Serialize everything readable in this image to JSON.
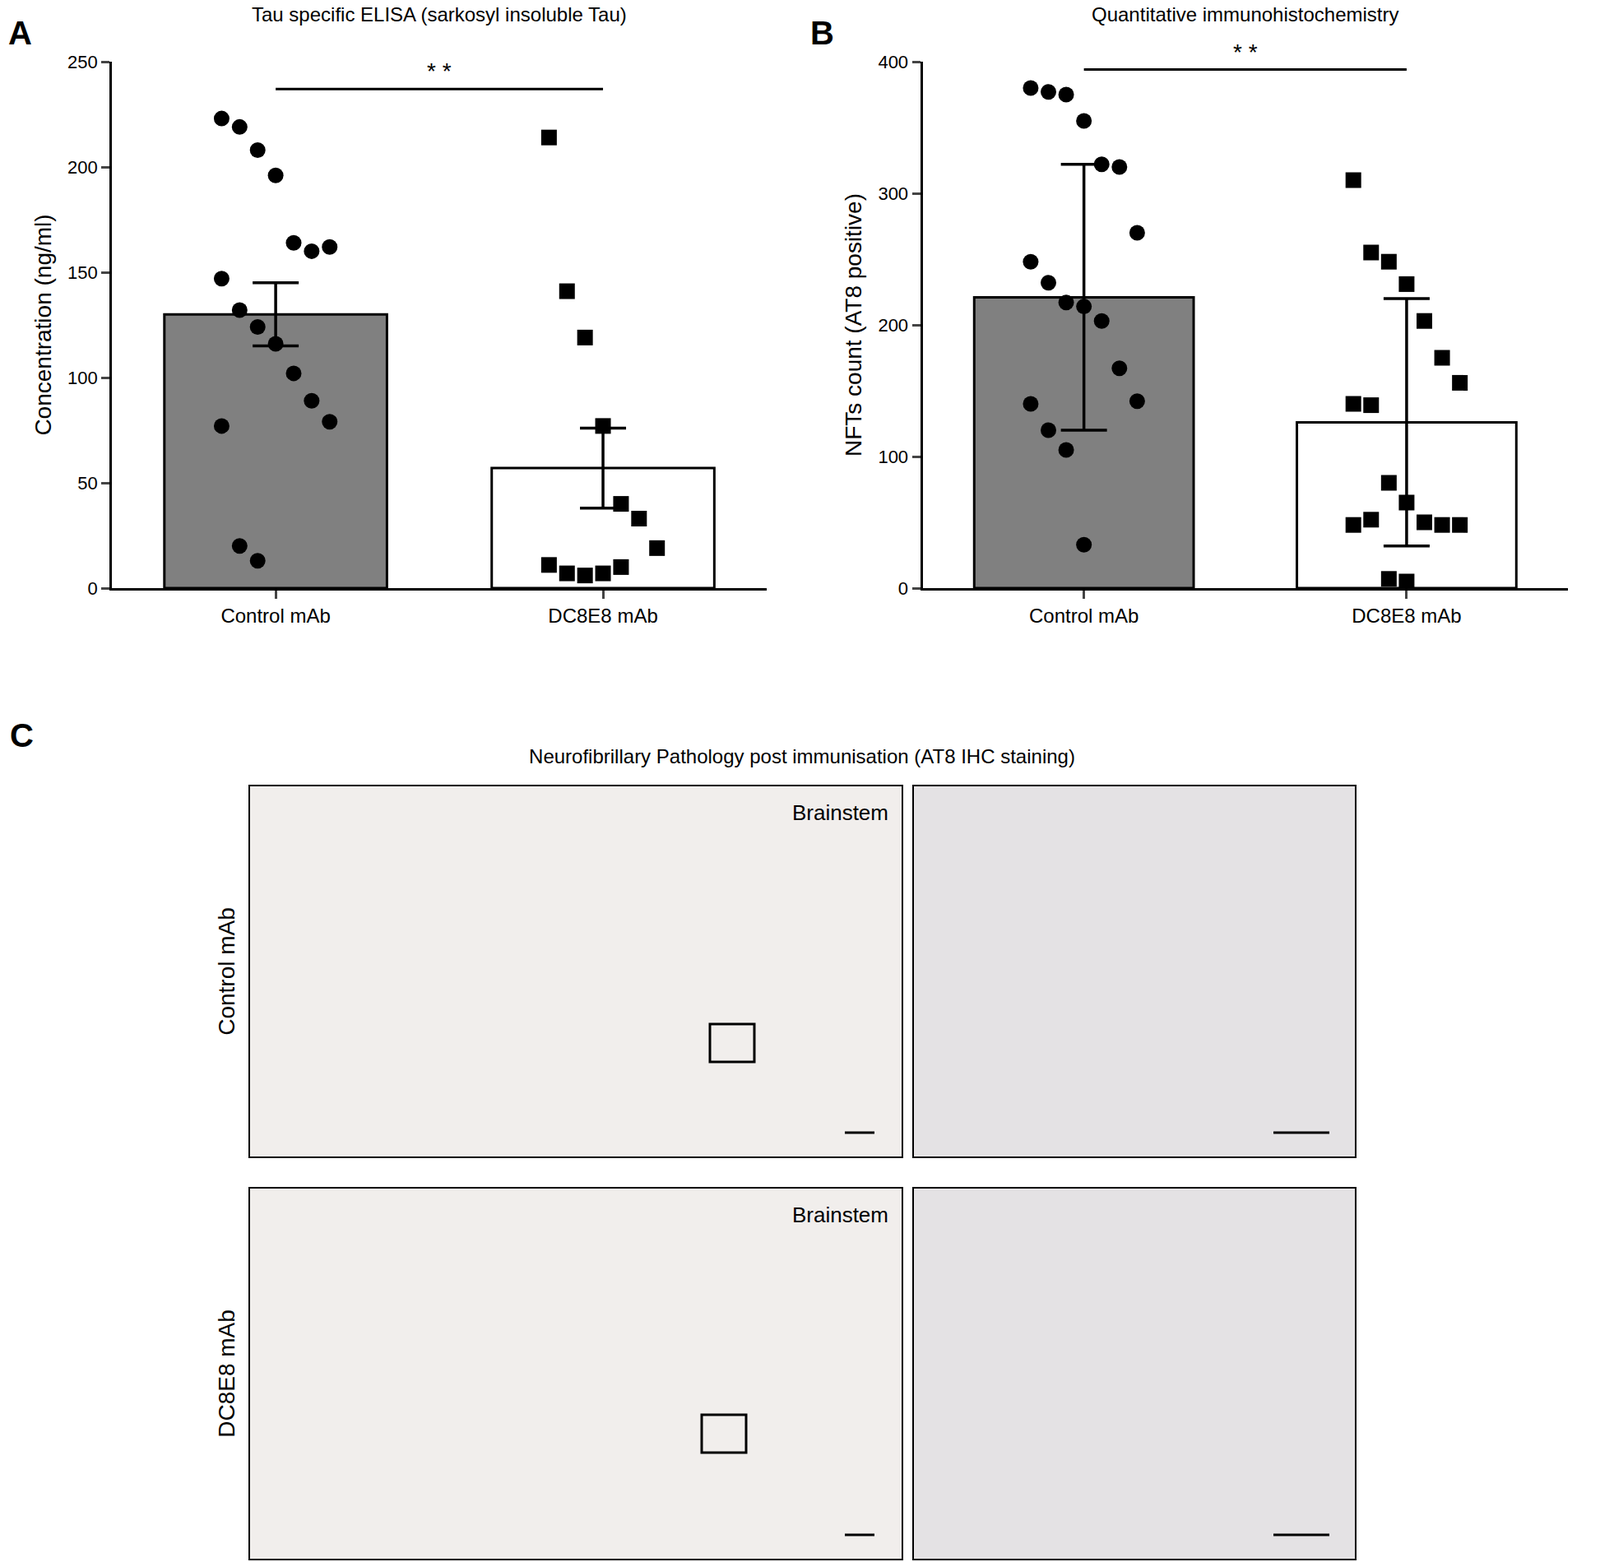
{
  "chart_data": [
    {
      "panel": "A",
      "type": "bar",
      "title": "Tau specific ELISA (sarkosyl insoluble Tau)",
      "y_label": "Concentration (ng/ml)",
      "categories": [
        "Control mAb",
        "DC8E8 mAb"
      ],
      "values": [
        130,
        57
      ],
      "error": [
        15,
        19
      ],
      "colors": [
        "#808080",
        "#ffffff"
      ],
      "points": [
        [
          223,
          219,
          208,
          196,
          164,
          160,
          162,
          147,
          132,
          124,
          116,
          102,
          89,
          79,
          77,
          20,
          13
        ],
        [
          214,
          141,
          119,
          77,
          40,
          33,
          19,
          11,
          7,
          6,
          7,
          10
        ]
      ],
      "point_markers": [
        "circle",
        "square"
      ],
      "ylim": [
        0,
        250
      ],
      "yticks": [
        0,
        50,
        100,
        150,
        200,
        250
      ],
      "grid": false,
      "annotations": [
        {
          "text": "* *",
          "y": 237
        }
      ]
    },
    {
      "panel": "B",
      "type": "bar",
      "title": "Quantitative immunohistochemistry",
      "y_label": "NFTs count (AT8 positive)",
      "categories": [
        "Control mAb",
        "DC8E8 mAb"
      ],
      "values": [
        221,
        126
      ],
      "error": [
        101,
        94
      ],
      "colors": [
        "#808080",
        "#ffffff"
      ],
      "points": [
        [
          380,
          377,
          375,
          355,
          322,
          320,
          270,
          248,
          232,
          217,
          214,
          203,
          167,
          142,
          140,
          120,
          105,
          33
        ],
        [
          310,
          255,
          248,
          231,
          203,
          175,
          156,
          140,
          139,
          80,
          65,
          50,
          48,
          48,
          48,
          52,
          7,
          5
        ]
      ],
      "point_markers": [
        "circle",
        "square"
      ],
      "ylim": [
        0,
        400
      ],
      "yticks": [
        0,
        100,
        200,
        300,
        400
      ],
      "grid": false,
      "annotations": [
        {
          "text": "* *",
          "y": 394
        }
      ]
    }
  ],
  "panel_c": {
    "panel": "C",
    "title": "Neurofibrillary Pathology post immunisation (AT8 IHC staining)",
    "rows": [
      {
        "label": "Control mAb",
        "region": "Brainstem"
      },
      {
        "label": "DC8E8 mAb",
        "region": "Brainstem"
      }
    ]
  }
}
